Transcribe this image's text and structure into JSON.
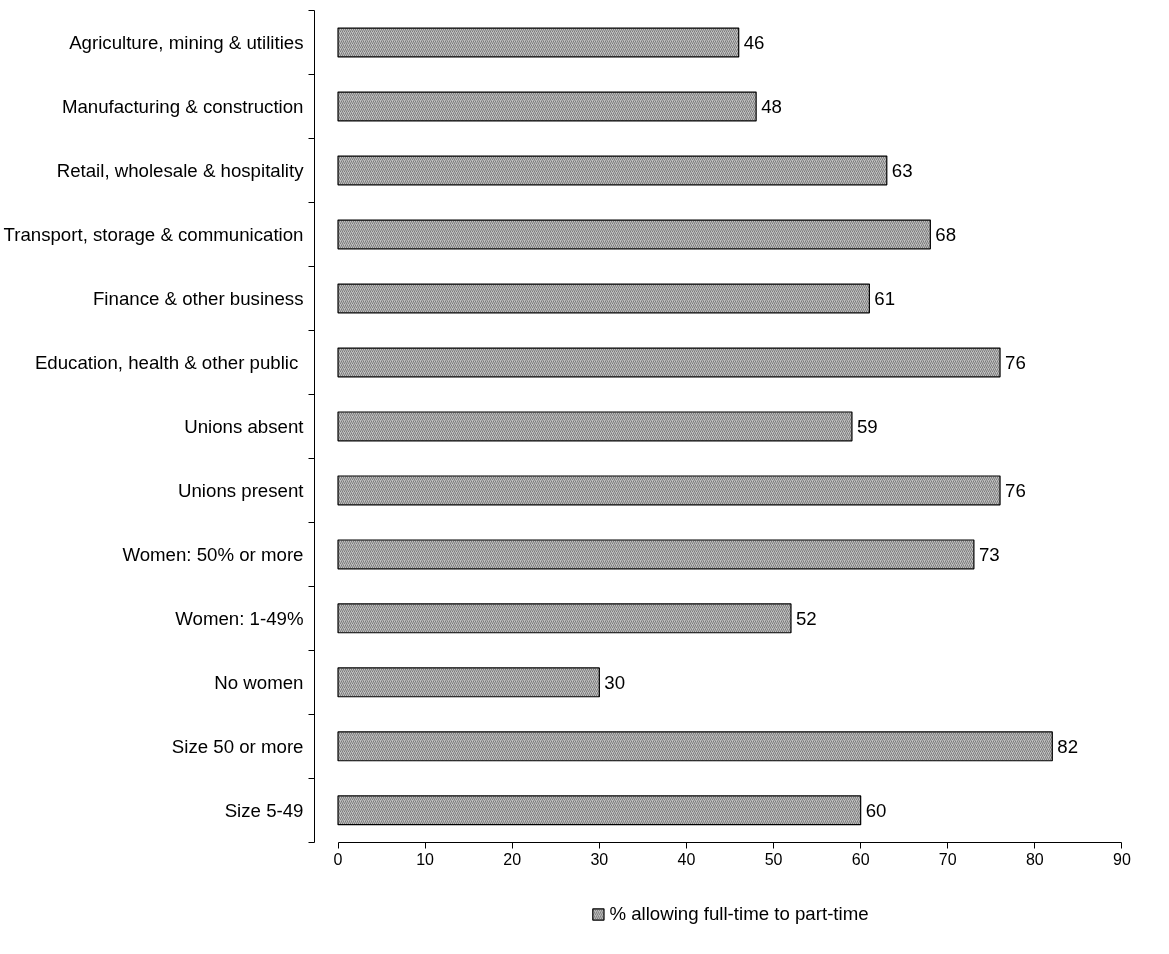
{
  "chart_data": {
    "type": "bar",
    "orientation": "horizontal",
    "categories": [
      "Agriculture, mining & utilities",
      "Manufacturing & construction",
      "Retail, wholesale & hospitality",
      "Transport, storage & communication",
      "Finance & other business",
      "Education, health & other public ",
      "Unions absent",
      "Unions present",
      "Women: 50% or more",
      "Women: 1-49%",
      "No women",
      "Size 50 or more",
      "Size 5-49"
    ],
    "series": [
      {
        "name": "% allowing full-time to part-time",
        "color": "#c0c0c0",
        "values": [
          46,
          48,
          63,
          68,
          61,
          76,
          59,
          76,
          73,
          52,
          30,
          82,
          60
        ]
      }
    ],
    "xlim": [
      0,
      90
    ],
    "xticks": [
      0,
      10,
      20,
      30,
      40,
      50,
      60,
      70,
      80,
      90
    ],
    "data_labels": true,
    "grid": false,
    "legend": "bottom"
  }
}
